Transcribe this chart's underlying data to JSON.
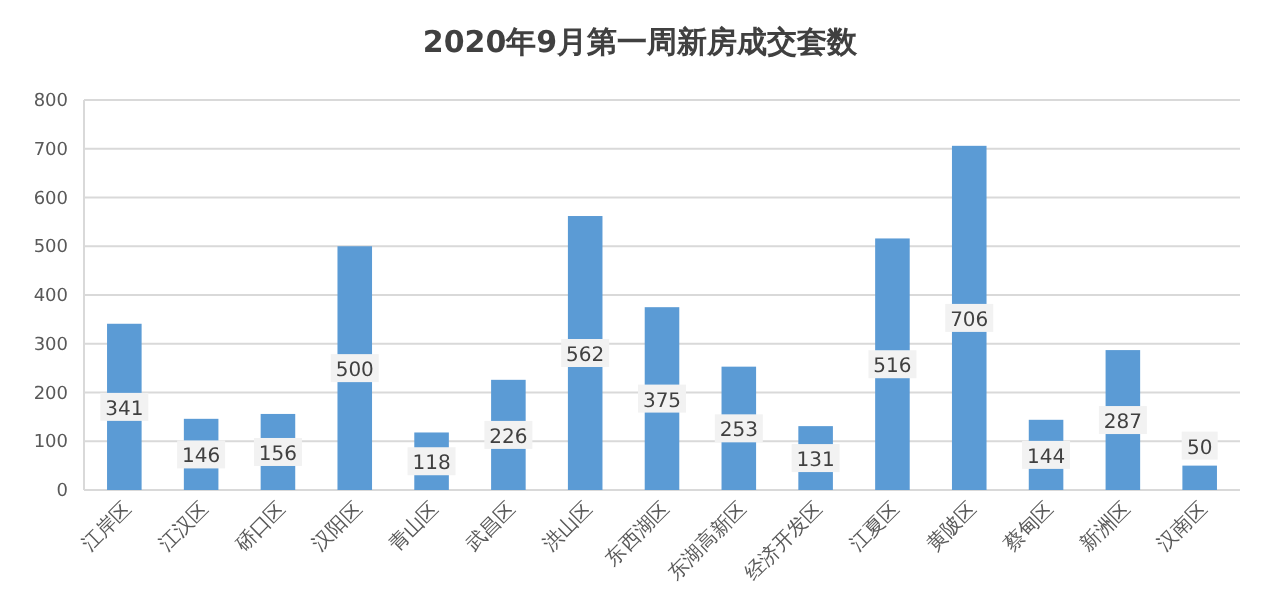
{
  "chart_data": {
    "type": "bar",
    "title": "2020年9月第一周新房成交套数",
    "categories": [
      "江岸区",
      "江汉区",
      "硚口区",
      "汉阳区",
      "青山区",
      "武昌区",
      "洪山区",
      "东西湖区",
      "东湖高新区",
      "经济开发区",
      "江夏区",
      "黄陂区",
      "蔡甸区",
      "新洲区",
      "汉南区"
    ],
    "values": [
      341,
      146,
      156,
      500,
      118,
      226,
      562,
      375,
      253,
      131,
      516,
      706,
      144,
      287,
      50
    ],
    "color": "#5b9bd5",
    "ylim": [
      0,
      800
    ],
    "yticks": [
      0,
      100,
      200,
      300,
      400,
      500,
      600,
      700,
      800
    ],
    "grid": "y",
    "data_labels": true
  }
}
